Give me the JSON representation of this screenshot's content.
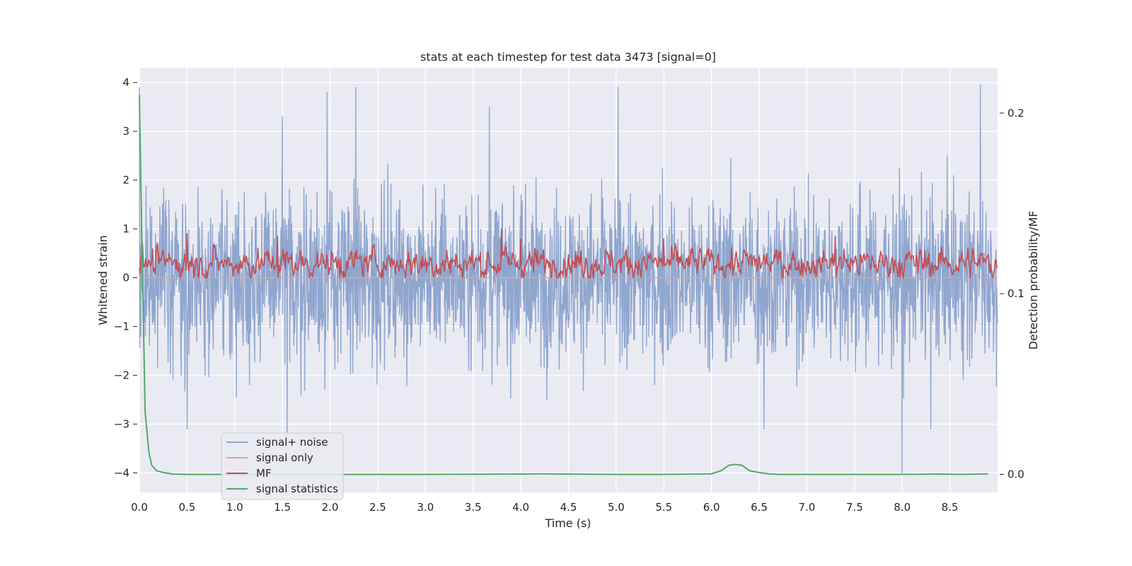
{
  "chart_data": {
    "type": "line",
    "title": "stats at each timestep for test data 3473 [signal=0]",
    "xlabel": "Time (s)",
    "ylabel": "Whitened strain",
    "y2label": "Detection probability/MF",
    "xlim": [
      0.0,
      9.0
    ],
    "ylim": [
      -4.4,
      4.3
    ],
    "y2lim": [
      -0.01,
      0.225
    ],
    "grid": true,
    "xticks": [
      "0.0",
      "0.5",
      "1.0",
      "1.5",
      "2.0",
      "2.5",
      "3.0",
      "3.5",
      "4.0",
      "4.5",
      "5.0",
      "5.5",
      "6.0",
      "6.5",
      "7.0",
      "7.5",
      "8.0",
      "8.5"
    ],
    "yticks": [
      "4",
      "3",
      "2",
      "1",
      "0",
      "−1",
      "−2",
      "−3",
      "−4"
    ],
    "y2ticks": [
      "0.2",
      "0.1",
      "0.0"
    ],
    "legend_position": "lower-left",
    "series": [
      {
        "name": "signal+ noise",
        "axis": "left",
        "color": "#8fa6cf",
        "peaks": [
          [
            0.0,
            3.9
          ],
          [
            0.5,
            -3.1
          ],
          [
            1.5,
            3.3
          ],
          [
            1.55,
            -3.4
          ],
          [
            1.97,
            3.8
          ],
          [
            2.27,
            3.9
          ],
          [
            3.67,
            3.5
          ],
          [
            5.02,
            3.9
          ],
          [
            6.55,
            -3.1
          ],
          [
            8.0,
            -4.0
          ],
          [
            8.3,
            -3.1
          ],
          [
            8.82,
            3.95
          ]
        ],
        "typical_range": [
          -2.5,
          2.5
        ]
      },
      {
        "name": "signal only",
        "axis": "left",
        "color": "#e5a58a",
        "constant": 0.0
      },
      {
        "name": "MF",
        "axis": "left",
        "color": "#c44e52",
        "peaks": [
          [
            0.5,
            0.9
          ],
          [
            1.45,
            0.85
          ],
          [
            3.8,
            1.0
          ],
          [
            4.0,
            0.8
          ],
          [
            5.5,
            0.8
          ],
          [
            7.3,
            0.85
          ]
        ],
        "typical_range": [
          0.0,
          0.7
        ]
      },
      {
        "name": "signal statistics",
        "axis": "right",
        "color": "#55a868",
        "x": [
          0.0,
          0.03,
          0.06,
          0.1,
          0.13,
          0.18,
          0.25,
          0.35,
          0.5,
          1.0,
          2.0,
          3.0,
          4.0,
          4.2,
          5.0,
          5.5,
          6.0,
          6.1,
          6.18,
          6.25,
          6.32,
          6.4,
          6.5,
          6.6,
          6.7,
          7.0,
          8.0,
          8.4,
          8.6,
          8.9
        ],
        "values": [
          0.21,
          0.12,
          0.035,
          0.012,
          0.005,
          0.002,
          0.001,
          0.0002,
          0.0,
          0.0,
          0.0,
          0.0,
          0.0002,
          0.0003,
          0.0,
          0.0,
          0.0003,
          0.002,
          0.005,
          0.0055,
          0.005,
          0.002,
          0.001,
          0.0003,
          0.0,
          0.0,
          0.0,
          0.0002,
          0.0,
          0.0003
        ]
      }
    ]
  }
}
